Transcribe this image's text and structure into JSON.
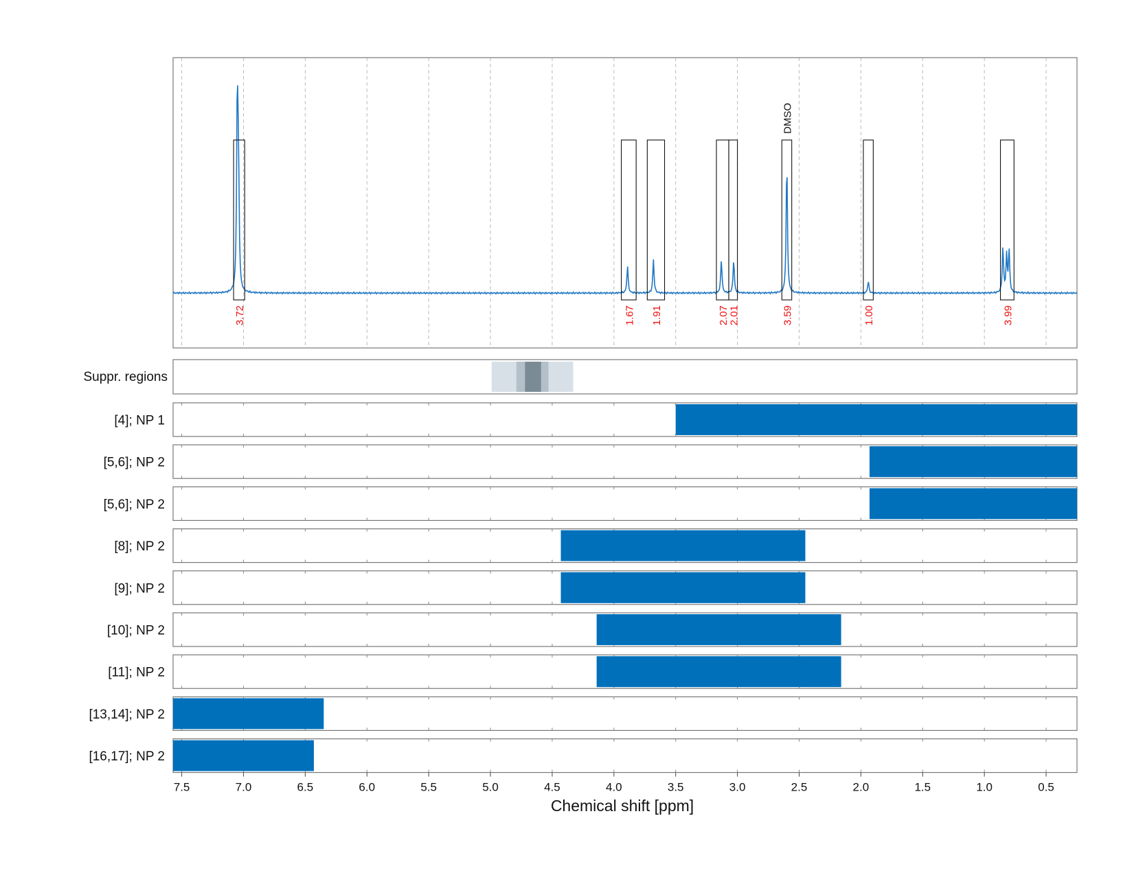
{
  "chart_data": {
    "type": "line",
    "xlabel": "Chemical shift [ppm]",
    "xlim": [
      7.57,
      0.25
    ],
    "x_ticks": [
      "7.5",
      "7.0",
      "6.5",
      "6.0",
      "5.5",
      "5.0",
      "4.5",
      "4.0",
      "3.5",
      "3.0",
      "2.5",
      "2.0",
      "1.5",
      "1.0",
      "0.5"
    ],
    "grid": true,
    "series": [
      {
        "peaks": [
          {
            "center": 7.05,
            "height": 0.66
          },
          {
            "center": 7.04,
            "height": 0.36
          },
          {
            "center": 3.89,
            "height": 0.09
          },
          {
            "center": 3.68,
            "height": 0.11
          },
          {
            "center": 3.13,
            "height": 0.11
          },
          {
            "center": 3.03,
            "height": 0.11
          },
          {
            "center": 2.6,
            "height": 0.44
          },
          {
            "center": 1.94,
            "height": 0.04
          },
          {
            "center": 0.85,
            "height": 0.15
          },
          {
            "center": 0.82,
            "height": 0.12
          },
          {
            "center": 0.8,
            "height": 0.14
          }
        ]
      }
    ],
    "integration_regions": [
      {
        "from": 7.08,
        "to": 6.99,
        "label": "3.72"
      },
      {
        "from": 3.94,
        "to": 3.82,
        "label": "1.67"
      },
      {
        "from": 3.73,
        "to": 3.59,
        "label": "1.91"
      },
      {
        "from": 3.17,
        "to": 3.07,
        "label": "2.07"
      },
      {
        "from": 3.07,
        "to": 3.0,
        "label": "2.01"
      },
      {
        "from": 2.64,
        "to": 2.56,
        "label": "3.59",
        "annotation": "DMSO"
      },
      {
        "from": 1.98,
        "to": 1.9,
        "label": "1.00"
      },
      {
        "from": 0.87,
        "to": 0.76,
        "label": "3.99"
      }
    ],
    "suppression_regions": [
      {
        "from": 4.99,
        "to": 4.33,
        "shade": "#d8e0e7"
      },
      {
        "from": 4.79,
        "to": 4.53,
        "shade": "#b3c0ca"
      },
      {
        "from": 4.72,
        "to": 4.59,
        "shade": "#7b8b96"
      }
    ],
    "suppression_label": "Suppr. regions",
    "assignment_rows": [
      {
        "label": "[4]; NP 1",
        "from": 3.5,
        "to": 0.25
      },
      {
        "label": "[5,6]; NP 2",
        "from": 1.93,
        "to": 0.25
      },
      {
        "label": "[5,6]; NP 2",
        "from": 1.93,
        "to": 0.25
      },
      {
        "label": "[8]; NP 2",
        "from": 4.43,
        "to": 2.45
      },
      {
        "label": "[9]; NP 2",
        "from": 4.43,
        "to": 2.45
      },
      {
        "label": "[10]; NP 2",
        "from": 4.14,
        "to": 2.16
      },
      {
        "label": "[11]; NP 2",
        "from": 4.14,
        "to": 2.16
      },
      {
        "label": "[13,14]; NP 2",
        "from": 7.57,
        "to": 6.35
      },
      {
        "label": "[16,17]; NP 2",
        "from": 7.57,
        "to": 6.43
      }
    ],
    "colors": {
      "spectrum": "#1f77c4",
      "bar": "#0070bb",
      "integral_label": "#ee1111",
      "grid": "#bbbbbb"
    }
  }
}
